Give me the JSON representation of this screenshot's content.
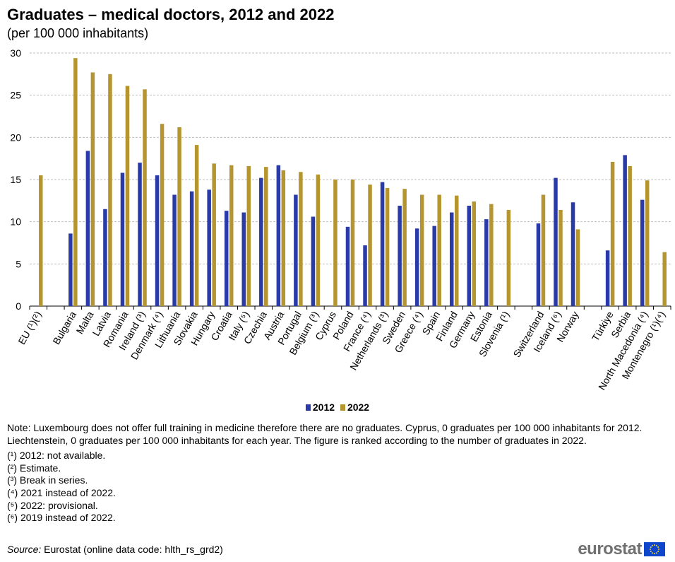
{
  "title": "Graduates – medical doctors, 2012 and 2022",
  "subtitle": "(per 100 000 inhabitants)",
  "colors": {
    "s2012": "#2a3ba8",
    "s2022": "#b5952f",
    "grid": "#bfbfbf",
    "axis": "#000000"
  },
  "chart_data": {
    "type": "bar",
    "ylim": [
      0,
      30
    ],
    "yticks": [
      0,
      5,
      10,
      15,
      20,
      25,
      30
    ],
    "grid": true,
    "legend_position": "bottom",
    "categories": [
      "EU (¹)(²)",
      "",
      "Bulgaria",
      "Malta",
      "Latvia",
      "Romania",
      "Ireland (³)",
      "Denmark (⁴)",
      "Lithuania",
      "Slovakia",
      "Hungary",
      "Croatia",
      "Italy (⁵)",
      "Czechia",
      "Austria",
      "Portugal",
      "Belgium (³)",
      "Cyprus",
      "Poland",
      "France (⁴)",
      "Netherlands (³)",
      "Sweden",
      "Greece (⁴)",
      "Spain",
      "Finland",
      "Germany",
      "Estonia",
      "Slovenia (¹)",
      "",
      "Switzerland",
      "Iceland (⁶)",
      "Norway",
      "",
      "Türkiye",
      "Serbia",
      "North Macedonia (⁴)",
      "Montenegro (¹)(⁴)"
    ],
    "series": [
      {
        "name": "2012",
        "values": [
          null,
          null,
          8.6,
          18.4,
          11.5,
          15.8,
          17.0,
          15.5,
          13.2,
          13.6,
          13.8,
          11.3,
          11.1,
          15.2,
          16.7,
          13.2,
          10.6,
          0,
          9.4,
          7.2,
          14.7,
          11.9,
          9.2,
          9.5,
          11.1,
          11.9,
          10.3,
          null,
          null,
          9.8,
          15.2,
          12.3,
          null,
          6.6,
          17.9,
          12.6,
          null
        ]
      },
      {
        "name": "2022",
        "values": [
          15.5,
          null,
          29.4,
          27.7,
          27.5,
          26.1,
          25.7,
          21.6,
          21.2,
          19.1,
          16.9,
          16.7,
          16.6,
          16.5,
          16.1,
          15.9,
          15.6,
          15.0,
          15.0,
          14.4,
          14.0,
          13.9,
          13.2,
          13.2,
          13.1,
          12.4,
          12.1,
          11.4,
          null,
          13.2,
          11.4,
          9.1,
          null,
          17.1,
          16.6,
          14.9,
          6.4
        ]
      }
    ]
  },
  "legend": [
    {
      "label": "2012",
      "color": "#2a3ba8"
    },
    {
      "label": "2022",
      "color": "#b5952f"
    }
  ],
  "note": "Note: Luxembourg does not offer full training in medicine therefore there are no graduates. Cyprus, 0 graduates per 100 000 inhabitants for 2012. Liechtenstein, 0 graduates per 100 000 inhabitants for each year. The figure is ranked according to the number of graduates in 2022.",
  "footnotes": [
    "(¹) 2012: not available.",
    "(²) Estimate.",
    "(³) Break in series.",
    "(⁴) 2021 instead of 2022.",
    "(⁵) 2022: provisional.",
    "(⁶) 2019 instead of 2022."
  ],
  "source_label": "Source:",
  "source_text": " Eurostat (online data code: hlth_rs_grd2)",
  "logo_text": "eurostat"
}
